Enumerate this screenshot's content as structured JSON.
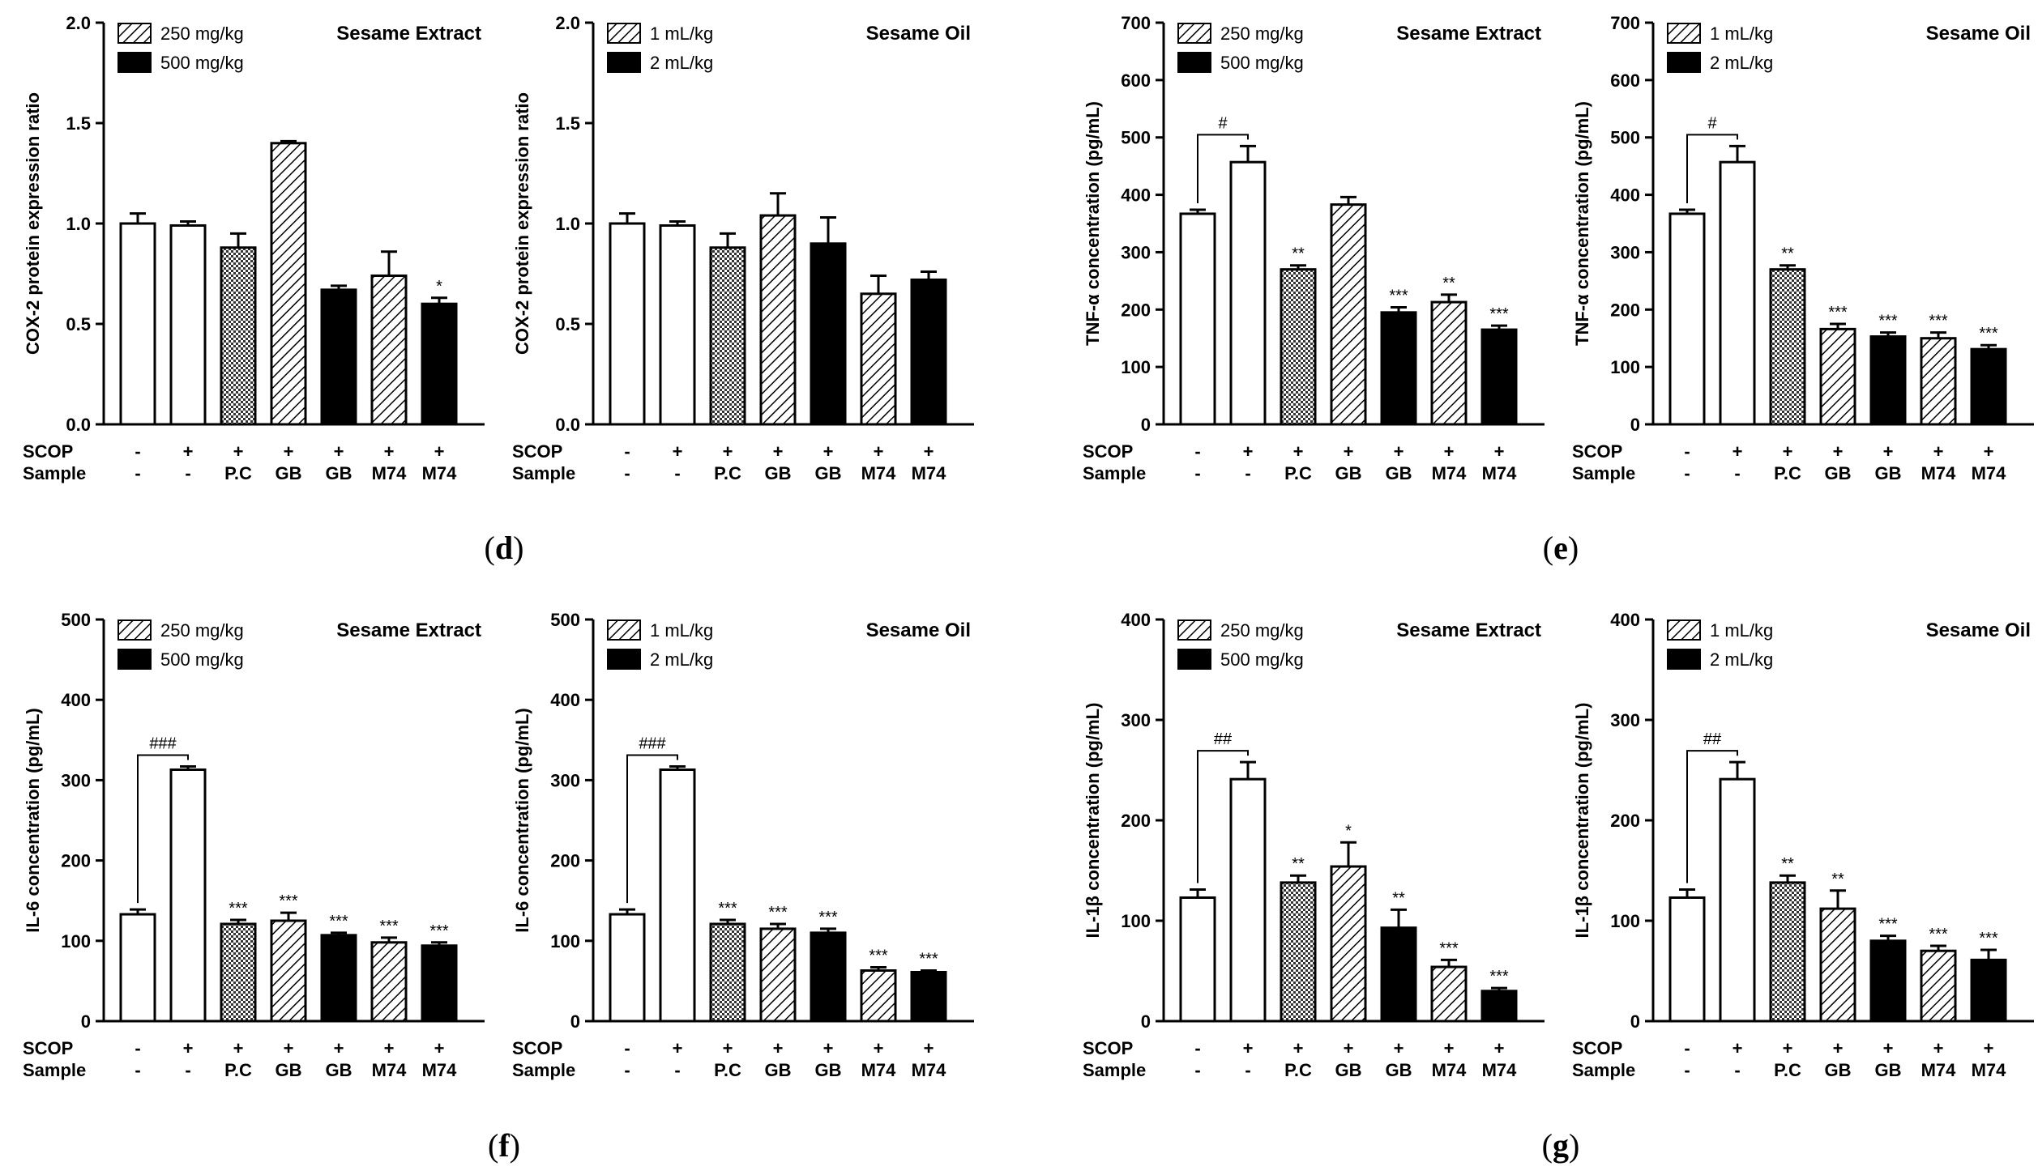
{
  "panel_labels": [
    "(d)",
    "(e)",
    "(f)",
    "(g)"
  ],
  "groups": {
    "scop_label": "SCOP",
    "sample_label": "Sample",
    "scop": [
      "-",
      "+",
      "+",
      "+",
      "+",
      "+",
      "+"
    ],
    "samples": [
      "-",
      "-",
      "P.C",
      "GB",
      "GB",
      "M74",
      "M74"
    ]
  },
  "colors": {
    "bar_stroke": "#000000",
    "white": "#ffffff",
    "black": "#000000"
  },
  "chart_data": [
    {
      "type": "bar",
      "panel": "d",
      "title": "Sesame Extract",
      "ylabel": "COX-2 protein expression ratio",
      "ylim": [
        0,
        2.0
      ],
      "yticks": [
        0.0,
        0.5,
        1.0,
        1.5,
        2.0
      ],
      "tick_decimals": 1,
      "legend": [
        {
          "pattern": "hatch",
          "label": "250 mg/kg"
        },
        {
          "pattern": "black",
          "label": "500 mg/kg"
        }
      ],
      "values": [
        1.0,
        0.99,
        0.88,
        1.4,
        0.67,
        0.74,
        0.6
      ],
      "errors": [
        0.05,
        0.02,
        0.07,
        0.01,
        0.02,
        0.12,
        0.03
      ],
      "sig": [
        "",
        "",
        "",
        "",
        "",
        "",
        "*"
      ]
    },
    {
      "type": "bar",
      "panel": "d",
      "title": "Sesame Oil",
      "ylabel": "COX-2 protein expression ratio",
      "ylim": [
        0,
        2.0
      ],
      "yticks": [
        0.0,
        0.5,
        1.0,
        1.5,
        2.0
      ],
      "tick_decimals": 1,
      "legend": [
        {
          "pattern": "hatch",
          "label": "1 mL/kg"
        },
        {
          "pattern": "black",
          "label": "2 mL/kg"
        }
      ],
      "values": [
        1.0,
        0.99,
        0.88,
        1.04,
        0.9,
        0.65,
        0.72
      ],
      "errors": [
        0.05,
        0.02,
        0.07,
        0.11,
        0.13,
        0.09,
        0.04
      ],
      "sig": [
        "",
        "",
        "",
        "",
        "",
        "",
        ""
      ]
    },
    {
      "type": "bar",
      "panel": "e",
      "title": "Sesame Extract",
      "ylabel": "TNF-α concentration (pg/mL)",
      "ylim": [
        0,
        700
      ],
      "yticks": [
        0,
        100,
        200,
        300,
        400,
        500,
        600,
        700
      ],
      "tick_decimals": 0,
      "legend": [
        {
          "pattern": "hatch",
          "label": "250 mg/kg"
        },
        {
          "pattern": "black",
          "label": "500 mg/kg"
        }
      ],
      "values": [
        367,
        457,
        270,
        383,
        195,
        213,
        165
      ],
      "errors": [
        7,
        28,
        7,
        13,
        9,
        13,
        7
      ],
      "sig": [
        "",
        "",
        "**",
        "",
        "***",
        "**",
        "***"
      ],
      "bracket": "#"
    },
    {
      "type": "bar",
      "panel": "e",
      "title": "Sesame Oil",
      "ylabel": "TNF-α concentration (pg/mL)",
      "ylim": [
        0,
        700
      ],
      "yticks": [
        0,
        100,
        200,
        300,
        400,
        500,
        600,
        700
      ],
      "tick_decimals": 0,
      "legend": [
        {
          "pattern": "hatch",
          "label": "1 mL/kg"
        },
        {
          "pattern": "black",
          "label": "2 mL/kg"
        }
      ],
      "values": [
        367,
        457,
        270,
        166,
        153,
        150,
        131
      ],
      "errors": [
        7,
        28,
        7,
        9,
        7,
        10,
        7
      ],
      "sig": [
        "",
        "",
        "**",
        "***",
        "***",
        "***",
        "***"
      ],
      "bracket": "#"
    },
    {
      "type": "bar",
      "panel": "f",
      "title": "Sesame Extract",
      "ylabel": "IL-6 concentration (pg/mL)",
      "ylim": [
        0,
        500
      ],
      "yticks": [
        0,
        100,
        200,
        300,
        400,
        500
      ],
      "tick_decimals": 0,
      "legend": [
        {
          "pattern": "hatch",
          "label": "250 mg/kg"
        },
        {
          "pattern": "black",
          "label": "500 mg/kg"
        }
      ],
      "values": [
        133,
        313,
        121,
        125,
        107,
        98,
        94
      ],
      "errors": [
        6,
        4,
        5,
        10,
        3,
        6,
        4
      ],
      "sig": [
        "",
        "",
        "***",
        "***",
        "***",
        "***",
        "***"
      ],
      "bracket": "###"
    },
    {
      "type": "bar",
      "panel": "f",
      "title": "Sesame Oil",
      "ylabel": "IL-6 concentration (pg/mL)",
      "ylim": [
        0,
        500
      ],
      "yticks": [
        0,
        100,
        200,
        300,
        400,
        500
      ],
      "tick_decimals": 0,
      "legend": [
        {
          "pattern": "hatch",
          "label": "1 mL/kg"
        },
        {
          "pattern": "black",
          "label": "2 mL/kg"
        }
      ],
      "values": [
        133,
        313,
        121,
        115,
        110,
        63,
        61
      ],
      "errors": [
        6,
        4,
        5,
        6,
        5,
        4,
        2
      ],
      "sig": [
        "",
        "",
        "***",
        "***",
        "***",
        "***",
        "***"
      ],
      "bracket": "###"
    },
    {
      "type": "bar",
      "panel": "g",
      "title": "Sesame Extract",
      "ylabel": "IL-1β concentration (pg/mL)",
      "ylim": [
        0,
        400
      ],
      "yticks": [
        0,
        100,
        200,
        300,
        400
      ],
      "tick_decimals": 0,
      "legend": [
        {
          "pattern": "hatch",
          "label": "250 mg/kg"
        },
        {
          "pattern": "black",
          "label": "500 mg/kg"
        }
      ],
      "values": [
        123,
        241,
        138,
        154,
        93,
        54,
        30
      ],
      "errors": [
        8,
        17,
        7,
        24,
        18,
        7,
        3
      ],
      "sig": [
        "",
        "",
        "**",
        "*",
        "**",
        "***",
        "***"
      ],
      "bracket": "##"
    },
    {
      "type": "bar",
      "panel": "g",
      "title": "Sesame Oil",
      "ylabel": "IL-1β concentration (pg/mL)",
      "ylim": [
        0,
        400
      ],
      "yticks": [
        0,
        100,
        200,
        300,
        400
      ],
      "tick_decimals": 0,
      "legend": [
        {
          "pattern": "hatch",
          "label": "1 mL/kg"
        },
        {
          "pattern": "black",
          "label": "2 mL/kg"
        }
      ],
      "values": [
        123,
        241,
        138,
        112,
        80,
        70,
        61
      ],
      "errors": [
        8,
        17,
        7,
        18,
        5,
        5,
        10
      ],
      "sig": [
        "",
        "",
        "**",
        "**",
        "***",
        "***",
        "***"
      ],
      "bracket": "##"
    }
  ]
}
